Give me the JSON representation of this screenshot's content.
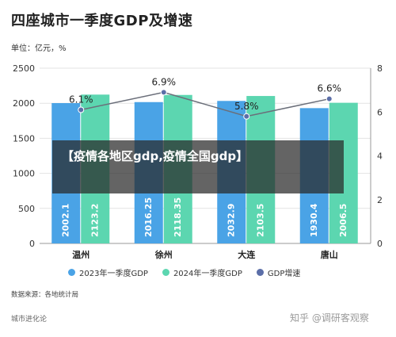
{
  "title": "四座城市一季度GDP及增速",
  "unit_label": "单位：亿元，%",
  "banner": "【疫情各地区gdp,疫情全国gdp】",
  "source": "数据来源：各地统计局",
  "footer_brand": "城市进化论",
  "footer_watermark": "知乎 @调研客观察",
  "colors": {
    "series_2023": "#4aa3e6",
    "series_2024": "#5cd6b0",
    "growth_line": "#5b6ea8",
    "banner_bg": "#282828"
  },
  "chart_data": {
    "type": "bar",
    "categories": [
      "温州",
      "徐州",
      "大连",
      "唐山"
    ],
    "series": [
      {
        "name": "2023年一季度GDP",
        "type": "bar",
        "axis": "left",
        "values": [
          2002.1,
          2016.25,
          2032.9,
          1930.4
        ]
      },
      {
        "name": "2024年一季度GDP",
        "type": "bar",
        "axis": "left",
        "values": [
          2123.2,
          2118.35,
          2103.5,
          2006.5
        ]
      },
      {
        "name": "GDP增速",
        "type": "line",
        "axis": "right",
        "values": [
          6.1,
          6.9,
          5.8,
          6.6
        ],
        "labels": [
          "6.1%",
          "6.9%",
          "5.8%",
          "6.6%"
        ]
      }
    ],
    "bar_value_labels": [
      [
        "2002.1",
        "2016.25",
        "2032.9",
        "1930.4"
      ],
      [
        "2123.2",
        "2118.35",
        "2103.5",
        "2006.5"
      ]
    ],
    "ylim_left": [
      0,
      2500
    ],
    "yticks_left": [
      "0",
      "500",
      "1000",
      "1500",
      "2000",
      "2500"
    ],
    "ylim_right": [
      0,
      8
    ],
    "yticks_right": [
      "0",
      "2",
      "4",
      "6",
      "8"
    ],
    "grid": true,
    "legend_position": "bottom"
  }
}
